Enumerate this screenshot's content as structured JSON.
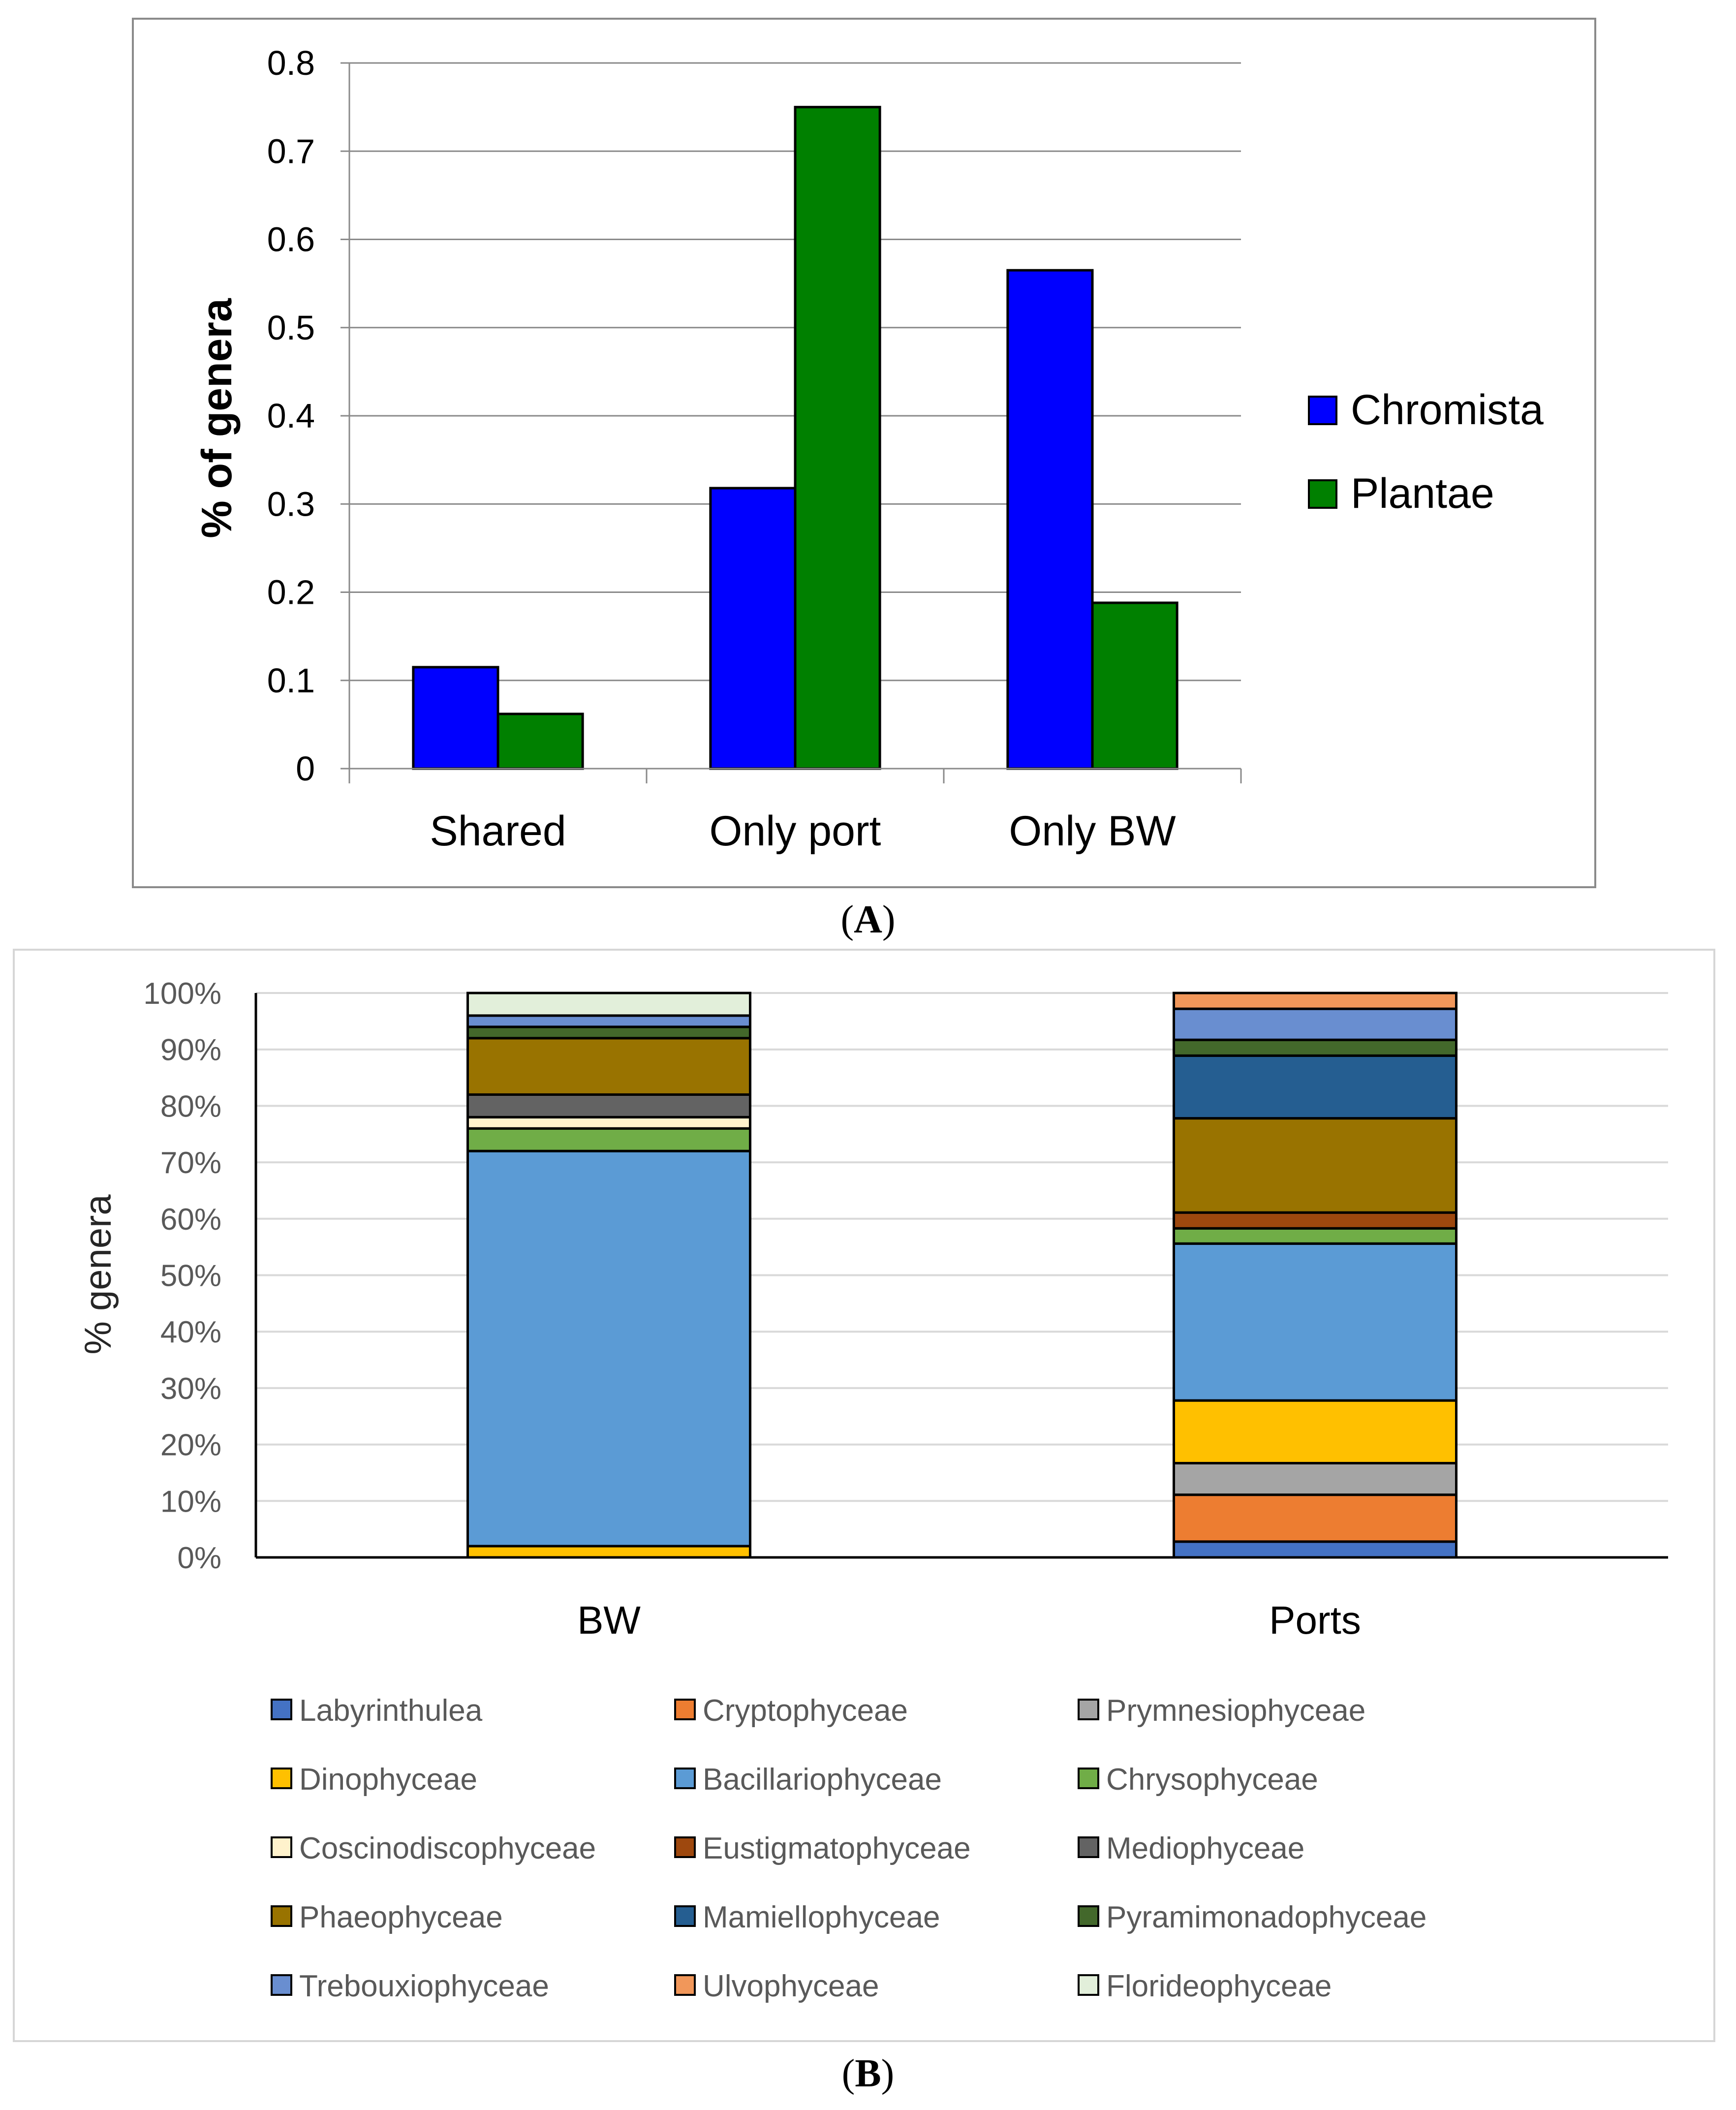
{
  "chart_data": [
    {
      "panel_label": "A",
      "type": "bar",
      "ylabel": "% of genera",
      "xlabel": "",
      "ylim": [
        0,
        0.8
      ],
      "y_ticks": [
        "0",
        "0.1",
        "0.2",
        "0.3",
        "0.4",
        "0.5",
        "0.6",
        "0.7",
        "0.8"
      ],
      "categories": [
        "Shared",
        "Only port",
        "Only BW"
      ],
      "legend_position": "right",
      "series": [
        {
          "name": "Chromista",
          "color": "#0000FF",
          "values": [
            0.115,
            0.318,
            0.565
          ]
        },
        {
          "name": "Plantae",
          "color": "#008000",
          "values": [
            0.062,
            0.75,
            0.188
          ]
        }
      ]
    },
    {
      "panel_label": "B",
      "type": "bar",
      "stacked": true,
      "ylabel": "% genera",
      "xlabel": "",
      "ylim": [
        0,
        100
      ],
      "y_ticks": [
        "0%",
        "10%",
        "20%",
        "30%",
        "40%",
        "50%",
        "60%",
        "70%",
        "80%",
        "90%",
        "100%"
      ],
      "categories": [
        "BW",
        "Ports"
      ],
      "legend_position": "bottom",
      "series": [
        {
          "name": "Labyrinthulea",
          "color": "#4472C4",
          "values": [
            0,
            2.8
          ]
        },
        {
          "name": "Cryptophyceae",
          "color": "#ED7D31",
          "values": [
            0,
            8.3
          ]
        },
        {
          "name": "Prymnesiophyceae",
          "color": "#A5A5A5",
          "values": [
            0,
            5.6
          ]
        },
        {
          "name": "Dinophyceae",
          "color": "#FFC000",
          "values": [
            2.0,
            11.1
          ]
        },
        {
          "name": "Bacillariophyceae",
          "color": "#5B9BD5",
          "values": [
            70.0,
            27.8
          ]
        },
        {
          "name": "Chrysophyceae",
          "color": "#70AD47",
          "values": [
            4.0,
            2.7
          ]
        },
        {
          "name": "Coscinodiscophyceae",
          "color": "#FFF2CC",
          "values": [
            2.0,
            0
          ]
        },
        {
          "name": "Eustigmatophyceae",
          "color": "#9E480E",
          "values": [
            0,
            2.8
          ]
        },
        {
          "name": "Mediophyceae",
          "color": "#636363",
          "values": [
            4.0,
            0
          ]
        },
        {
          "name": "Phaeophyceae",
          "color": "#997300",
          "values": [
            10.0,
            16.7
          ]
        },
        {
          "name": "Mamiellophyceae",
          "color": "#255E91",
          "values": [
            0,
            11.1
          ]
        },
        {
          "name": "Pyramimonadophyceae",
          "color": "#43682B",
          "values": [
            2.0,
            2.8
          ]
        },
        {
          "name": "Trebouxiophyceae",
          "color": "#698ED0",
          "values": [
            2.0,
            5.5
          ]
        },
        {
          "name": "Ulvophyceae",
          "color": "#F1975A",
          "values": [
            0,
            2.8
          ]
        },
        {
          "name": "Florideophyceae",
          "color": "#E2EFDA",
          "values": [
            4.0,
            0
          ]
        }
      ]
    }
  ]
}
